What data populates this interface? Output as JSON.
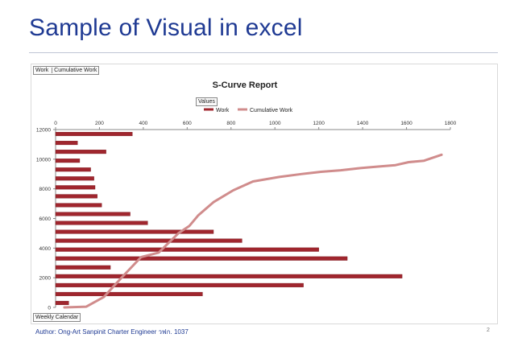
{
  "slide": {
    "title": "Sample of Visual in excel",
    "footer": "Author: Ong-Art Sanpinit Charter Engineer วฟก. 1037",
    "page_number": "2"
  },
  "pivot_buttons": {
    "fields_top": [
      "Work",
      "Cumulative Work"
    ],
    "values": "Values",
    "axis": "Weekly Calendar"
  },
  "colors": {
    "work": "#a0262e",
    "cumulative": "#d08c8c",
    "title": "#1f3a93"
  },
  "chart_data": {
    "type": "bar",
    "title": "S-Curve Report",
    "legend_placement": "top-center",
    "grid": false,
    "series": [
      {
        "name": "Work",
        "type": "bar",
        "orientation": "horizontal",
        "axis": "top",
        "values": [
          60,
          670,
          1130,
          1580,
          250,
          1330,
          1200,
          850,
          720,
          420,
          340,
          210,
          190,
          180,
          175,
          160,
          110,
          230,
          100,
          350
        ]
      },
      {
        "name": "Cumulative Work",
        "type": "line",
        "axis": "left",
        "x": [
          40,
          140,
          220,
          300,
          390,
          470,
          560,
          610,
          650,
          720,
          810,
          900,
          1020,
          1120,
          1210,
          1300,
          1390,
          1470,
          1550,
          1610,
          1680,
          1760
        ],
        "y": [
          0,
          50,
          700,
          2000,
          3400,
          3700,
          5000,
          5500,
          6200,
          7100,
          7900,
          8500,
          8800,
          9000,
          9150,
          9250,
          9400,
          9500,
          9600,
          9800,
          9900,
          10300
        ]
      }
    ],
    "x_axis": {
      "position": "top",
      "ticks": [
        0,
        200,
        400,
        600,
        800,
        1000,
        1200,
        1400,
        1600,
        1800
      ],
      "range": [
        0,
        1800
      ]
    },
    "y_axis": {
      "position": "left",
      "ticks": [
        0,
        2000,
        4000,
        6000,
        8000,
        10000,
        12000
      ],
      "range": [
        0,
        12000
      ]
    }
  }
}
